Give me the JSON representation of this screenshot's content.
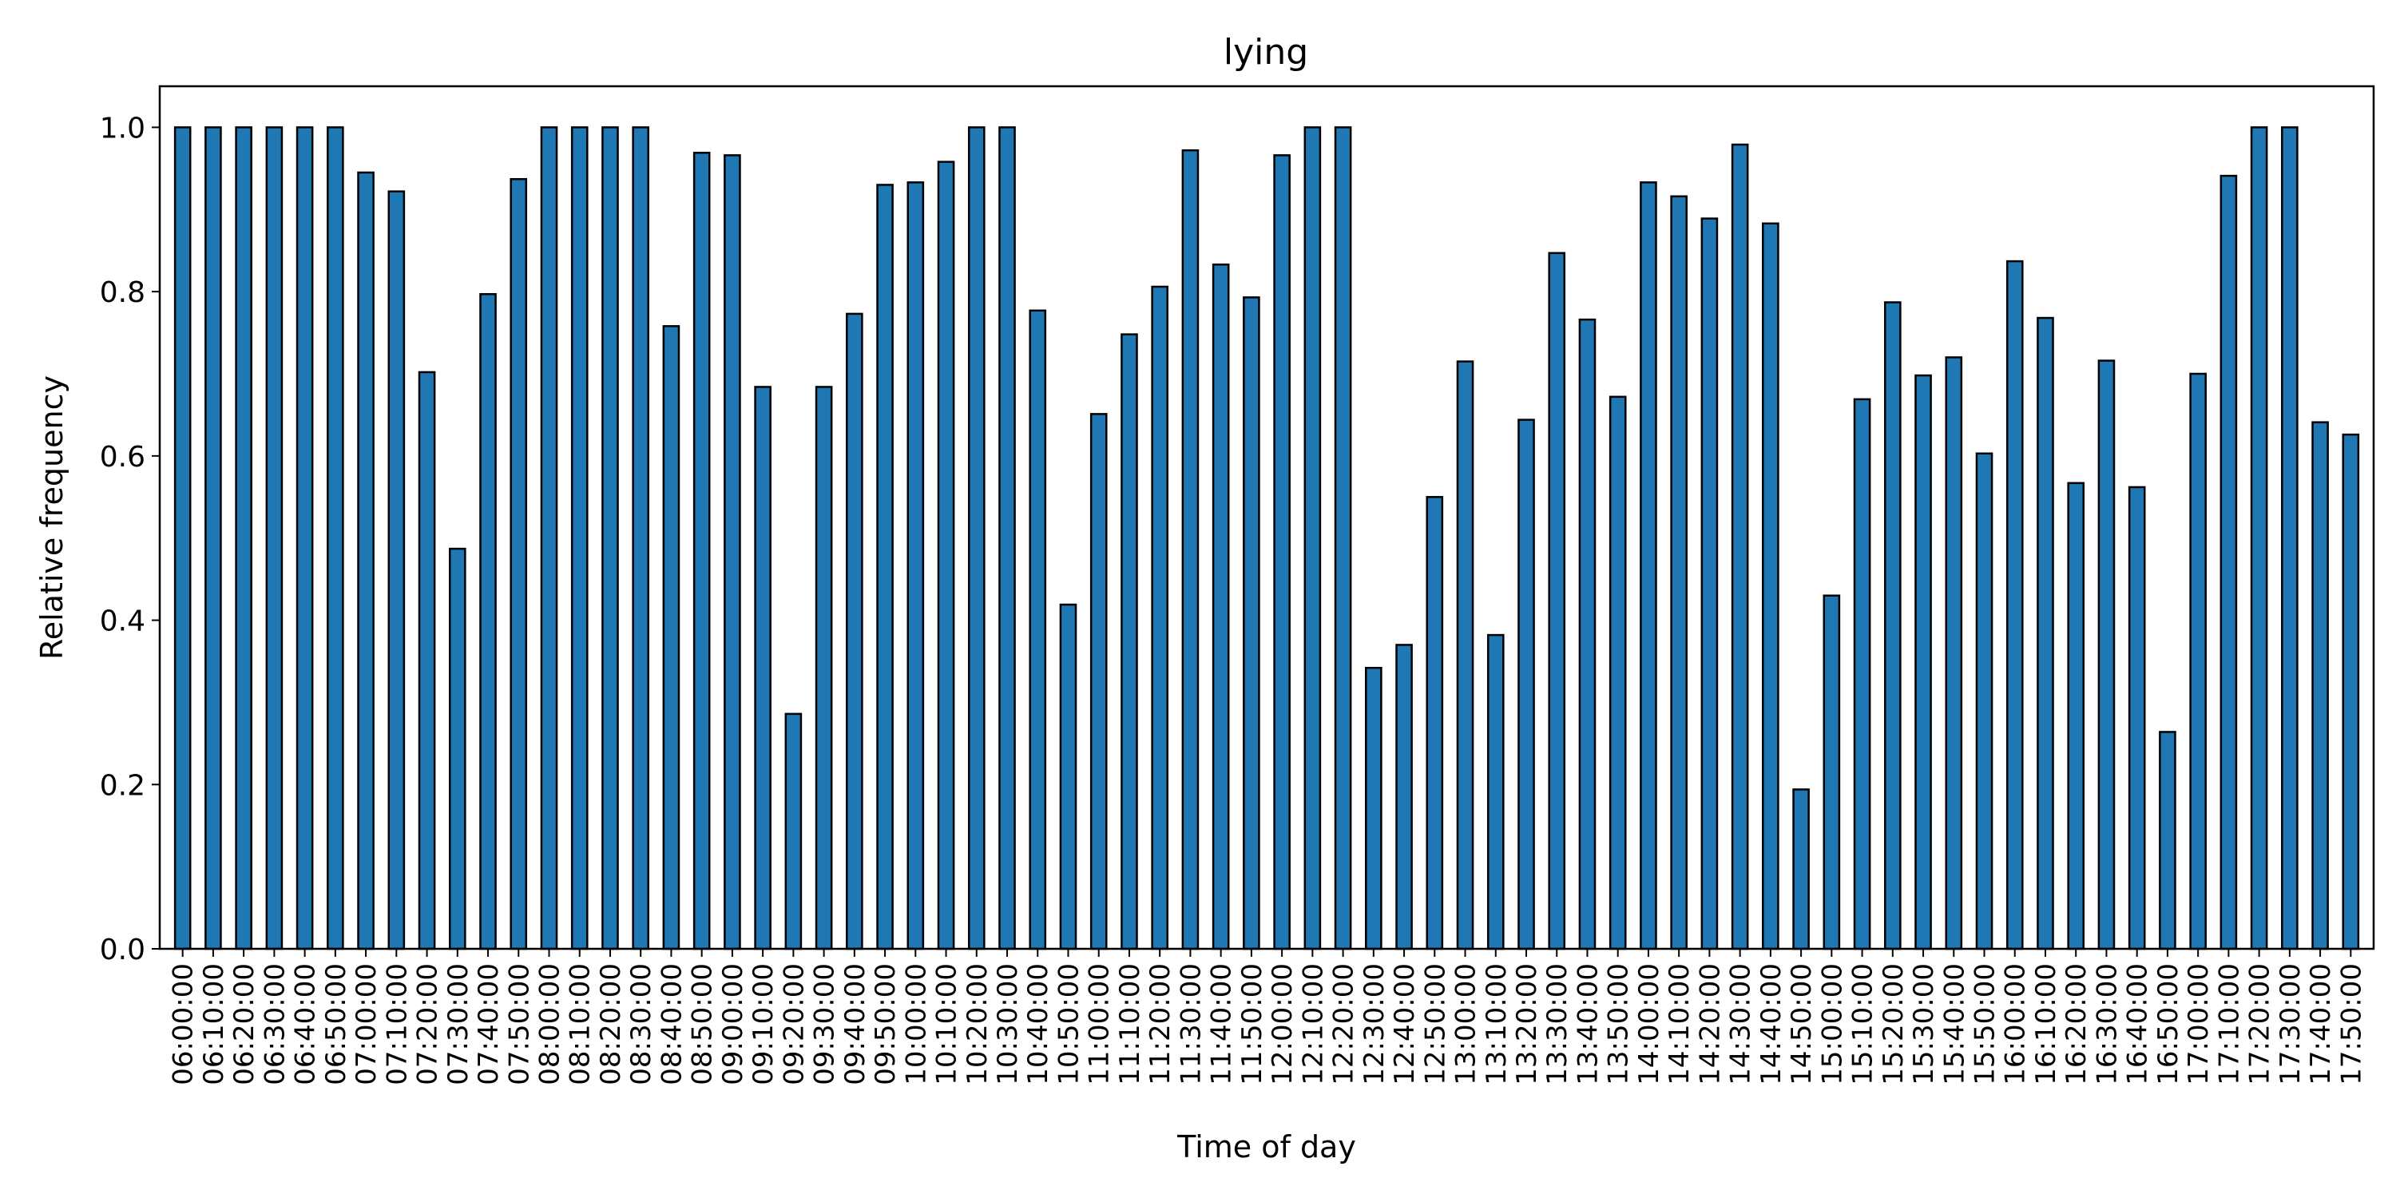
{
  "chart_data": {
    "type": "bar",
    "title": "lying",
    "xlabel": "Time of day",
    "ylabel": "Relative frequency",
    "ylim": [
      0,
      1.05
    ],
    "yticks": [
      0.0,
      0.2,
      0.4,
      0.6,
      0.8,
      1.0
    ],
    "ytick_labels": [
      "0.0",
      "0.2",
      "0.4",
      "0.6",
      "0.8",
      "1.0"
    ],
    "grid": false,
    "legend": "none",
    "categories": [
      "06:00:00",
      "06:10:00",
      "06:20:00",
      "06:30:00",
      "06:40:00",
      "06:50:00",
      "07:00:00",
      "07:10:00",
      "07:20:00",
      "07:30:00",
      "07:40:00",
      "07:50:00",
      "08:00:00",
      "08:10:00",
      "08:20:00",
      "08:30:00",
      "08:40:00",
      "08:50:00",
      "09:00:00",
      "09:10:00",
      "09:20:00",
      "09:30:00",
      "09:40:00",
      "09:50:00",
      "10:00:00",
      "10:10:00",
      "10:20:00",
      "10:30:00",
      "10:40:00",
      "10:50:00",
      "11:00:00",
      "11:10:00",
      "11:20:00",
      "11:30:00",
      "11:40:00",
      "11:50:00",
      "12:00:00",
      "12:10:00",
      "12:20:00",
      "12:30:00",
      "12:40:00",
      "12:50:00",
      "13:00:00",
      "13:10:00",
      "13:20:00",
      "13:30:00",
      "13:40:00",
      "13:50:00",
      "14:00:00",
      "14:10:00",
      "14:20:00",
      "14:30:00",
      "14:40:00",
      "14:50:00",
      "15:00:00",
      "15:10:00",
      "15:20:00",
      "15:30:00",
      "15:40:00",
      "15:50:00",
      "16:00:00",
      "16:10:00",
      "16:20:00",
      "16:30:00",
      "16:40:00",
      "16:50:00",
      "17:00:00",
      "17:10:00",
      "17:20:00",
      "17:30:00",
      "17:40:00",
      "17:50:00"
    ],
    "values": [
      1.0,
      1.0,
      1.0,
      1.0,
      1.0,
      1.0,
      0.945,
      0.922,
      0.702,
      0.487,
      0.797,
      0.937,
      1.0,
      1.0,
      1.0,
      1.0,
      0.758,
      0.969,
      0.966,
      0.684,
      0.286,
      0.684,
      0.773,
      0.93,
      0.933,
      0.958,
      1.0,
      1.0,
      0.777,
      0.419,
      0.651,
      0.748,
      0.806,
      0.972,
      0.833,
      0.793,
      0.966,
      1.0,
      1.0,
      0.342,
      0.37,
      0.55,
      0.715,
      0.382,
      0.644,
      0.847,
      0.766,
      0.672,
      0.933,
      0.916,
      0.889,
      0.979,
      0.883,
      0.194,
      0.43,
      0.669,
      0.787,
      0.698,
      0.72,
      0.603,
      0.837,
      0.768,
      0.567,
      0.716,
      0.562,
      0.264,
      0.7,
      0.941,
      1.0,
      1.0,
      0.641,
      0.626
    ],
    "colors": {
      "bar_fill": "#1f77b4",
      "bar_edge": "#000000",
      "axes": "#000000"
    }
  }
}
